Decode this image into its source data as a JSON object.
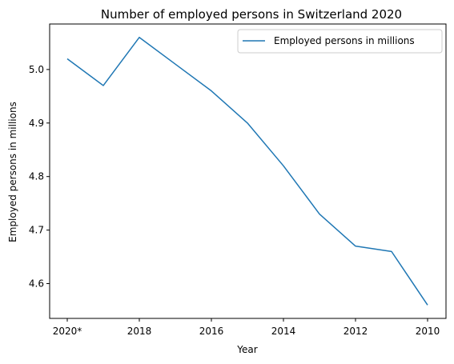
{
  "chart_data": {
    "type": "line",
    "title": "Number of employed persons in Switzerland 2020",
    "xlabel": "Year",
    "ylabel": "Employed persons in millions",
    "x": [
      "2020*",
      "2019",
      "2018",
      "2017",
      "2016",
      "2015",
      "2014",
      "2013",
      "2012",
      "2011",
      "2010"
    ],
    "x_tick_labels": [
      "2020*",
      "2018",
      "2016",
      "2014",
      "2012",
      "2010"
    ],
    "series": [
      {
        "name": "Employed persons in millions",
        "color": "#1f77b4",
        "values": [
          5.02,
          4.97,
          5.06,
          5.01,
          4.96,
          4.9,
          4.82,
          4.73,
          4.67,
          4.66,
          4.56
        ]
      }
    ],
    "y_ticks": [
      4.6,
      4.7,
      4.8,
      4.9,
      5.0
    ],
    "ylim": [
      4.535,
      5.085
    ],
    "grid": false,
    "legend": "upper right"
  }
}
